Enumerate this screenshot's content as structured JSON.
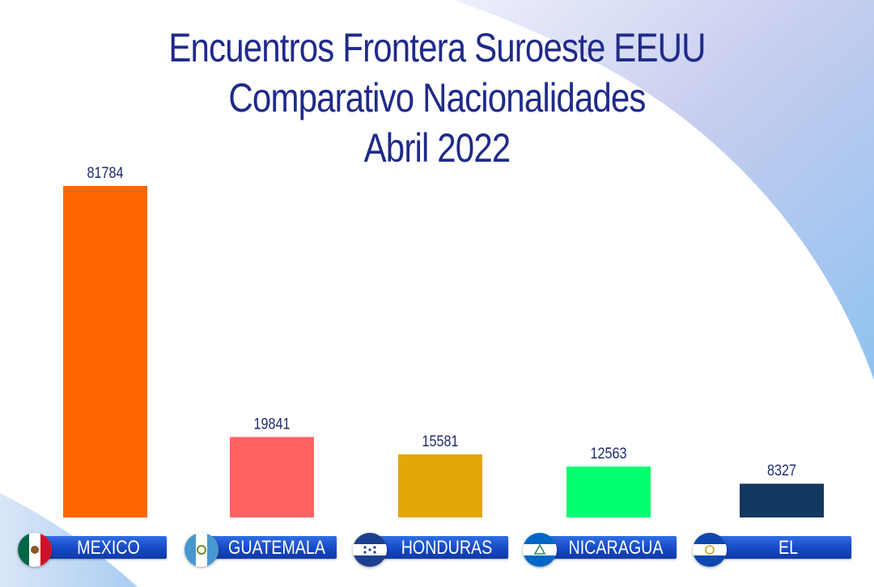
{
  "header": {
    "line1": "Encuentros Frontera Suroeste EEUU",
    "line2": "Comparativo Nacionalidades",
    "line3": "Abril 2022"
  },
  "chart_data": {
    "type": "bar",
    "title": "Encuentros Frontera Suroeste EEUU Comparativo Nacionalidades Abril 2022",
    "categories": [
      "MEXICO",
      "GUATEMALA",
      "HONDURAS",
      "NICARAGUA",
      "EL SALVADOR"
    ],
    "values": [
      81784,
      19841,
      15581,
      12563,
      8327
    ],
    "bar_colors": [
      "#ff6600",
      "#ff6262",
      "#e3a70a",
      "#00ff6e",
      "#12385f"
    ],
    "value_label_color": "#1f2a6e",
    "grid": false,
    "legend": "none"
  },
  "flags": [
    {
      "country": "MEXICO",
      "icon": "mexico-flag-icon"
    },
    {
      "country": "GUATEMALA",
      "icon": "guatemala-flag-icon"
    },
    {
      "country": "HONDURAS",
      "icon": "honduras-flag-icon"
    },
    {
      "country": "NICARAGUA",
      "icon": "nicaragua-flag-icon"
    },
    {
      "country": "EL SALVADOR",
      "icon": "el-salvador-flag-icon"
    }
  ],
  "colors": {
    "title": "#1f2a8a",
    "label_bg": "#1748c4",
    "swoosh": "#7fb2e6"
  }
}
